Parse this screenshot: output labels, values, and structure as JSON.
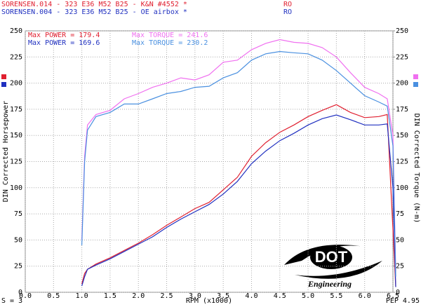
{
  "chart_data": {
    "type": "line",
    "header_lines": [
      {
        "text": "SORENSEN.014 - 323 E36 M52 B25 - K&N #4552 *",
        "tag": "RO",
        "color": "#e02030"
      },
      {
        "text": "SORENSEN.004 - 323 E36 M52 B25 - OE airbox *",
        "tag": "RO",
        "color": "#2030c0"
      }
    ],
    "annotations": [
      {
        "text": "Max POWER = 179.4",
        "color": "#e02030"
      },
      {
        "text": "Max TORQUE = 241.6",
        "color": "#f070f0"
      },
      {
        "text": "Max POWER = 169.6",
        "color": "#2030c0"
      },
      {
        "text": "Max TORQUE = 230.2",
        "color": "#4a90e0"
      }
    ],
    "ylabel": "DIN Corrected Horsepower",
    "y2label": "DIN Corrected Torque (N-m)",
    "xlabel": "RPM (x1000)",
    "footer_left": "S = 3",
    "footer_right": "PEP 4.95",
    "logo": {
      "name": "DOT",
      "subtitle": "Engineering"
    },
    "xlim": [
      0,
      6.5
    ],
    "xticks": [
      {
        "value": 0,
        "label": "0.0"
      },
      0.5,
      {
        "value": 1,
        "label": "1.0"
      },
      1.5,
      {
        "value": 2,
        "label": "2.0"
      },
      2.5,
      {
        "value": 3,
        "label": "3.0"
      },
      3.5,
      {
        "value": 4,
        "label": "4.0"
      },
      4.5,
      {
        "value": 5,
        "label": "5.0"
      },
      5.5,
      {
        "value": 6,
        "label": "6.0"
      },
      6.5
    ],
    "ylim": [
      0,
      250
    ],
    "yticks": [
      0,
      25,
      50,
      75,
      100,
      125,
      150,
      175,
      200,
      225,
      250
    ],
    "y2lim": [
      0,
      250
    ],
    "y2ticks": [
      0,
      25,
      50,
      75,
      100,
      125,
      150,
      175,
      200,
      225,
      250
    ],
    "grid": true,
    "x": [
      1.0,
      1.05,
      1.1,
      1.25,
      1.5,
      1.75,
      2.0,
      2.25,
      2.5,
      2.75,
      3.0,
      3.25,
      3.5,
      3.75,
      4.0,
      4.25,
      4.5,
      4.75,
      5.0,
      5.25,
      5.5,
      5.75,
      6.0,
      6.25,
      6.4,
      6.5,
      6.55
    ],
    "series": [
      {
        "name": "K&N power",
        "color": "#e02030",
        "values": [
          8,
          18,
          22,
          27,
          33,
          40,
          47,
          55,
          64,
          72,
          80,
          86,
          98,
          110,
          130,
          143,
          153,
          160,
          168,
          174,
          179.4,
          172,
          167,
          168,
          170,
          60,
          5
        ]
      },
      {
        "name": "OE power",
        "color": "#2030c0",
        "values": [
          6,
          15,
          22,
          26,
          32,
          39,
          46,
          53,
          62,
          70,
          77,
          84,
          94,
          106,
          123,
          135,
          145,
          152,
          160,
          166,
          169.6,
          165,
          160,
          160,
          161,
          100,
          5
        ]
      },
      {
        "name": "K&N torque",
        "color": "#f070f0",
        "axis": "y2",
        "values": [
          50,
          130,
          160,
          170,
          174,
          185,
          190,
          196,
          200,
          205,
          203,
          208,
          220,
          222,
          232,
          238,
          241.6,
          239,
          238,
          234,
          225,
          210,
          196,
          190,
          185,
          150,
          20
        ]
      },
      {
        "name": "OE torque",
        "color": "#4a90e0",
        "axis": "y2",
        "values": [
          45,
          125,
          155,
          168,
          172,
          180,
          180,
          185,
          190,
          192,
          196,
          197,
          205,
          210,
          222,
          228,
          230.2,
          229,
          228,
          222,
          212,
          200,
          188,
          182,
          178,
          140,
          15
        ]
      }
    ]
  }
}
